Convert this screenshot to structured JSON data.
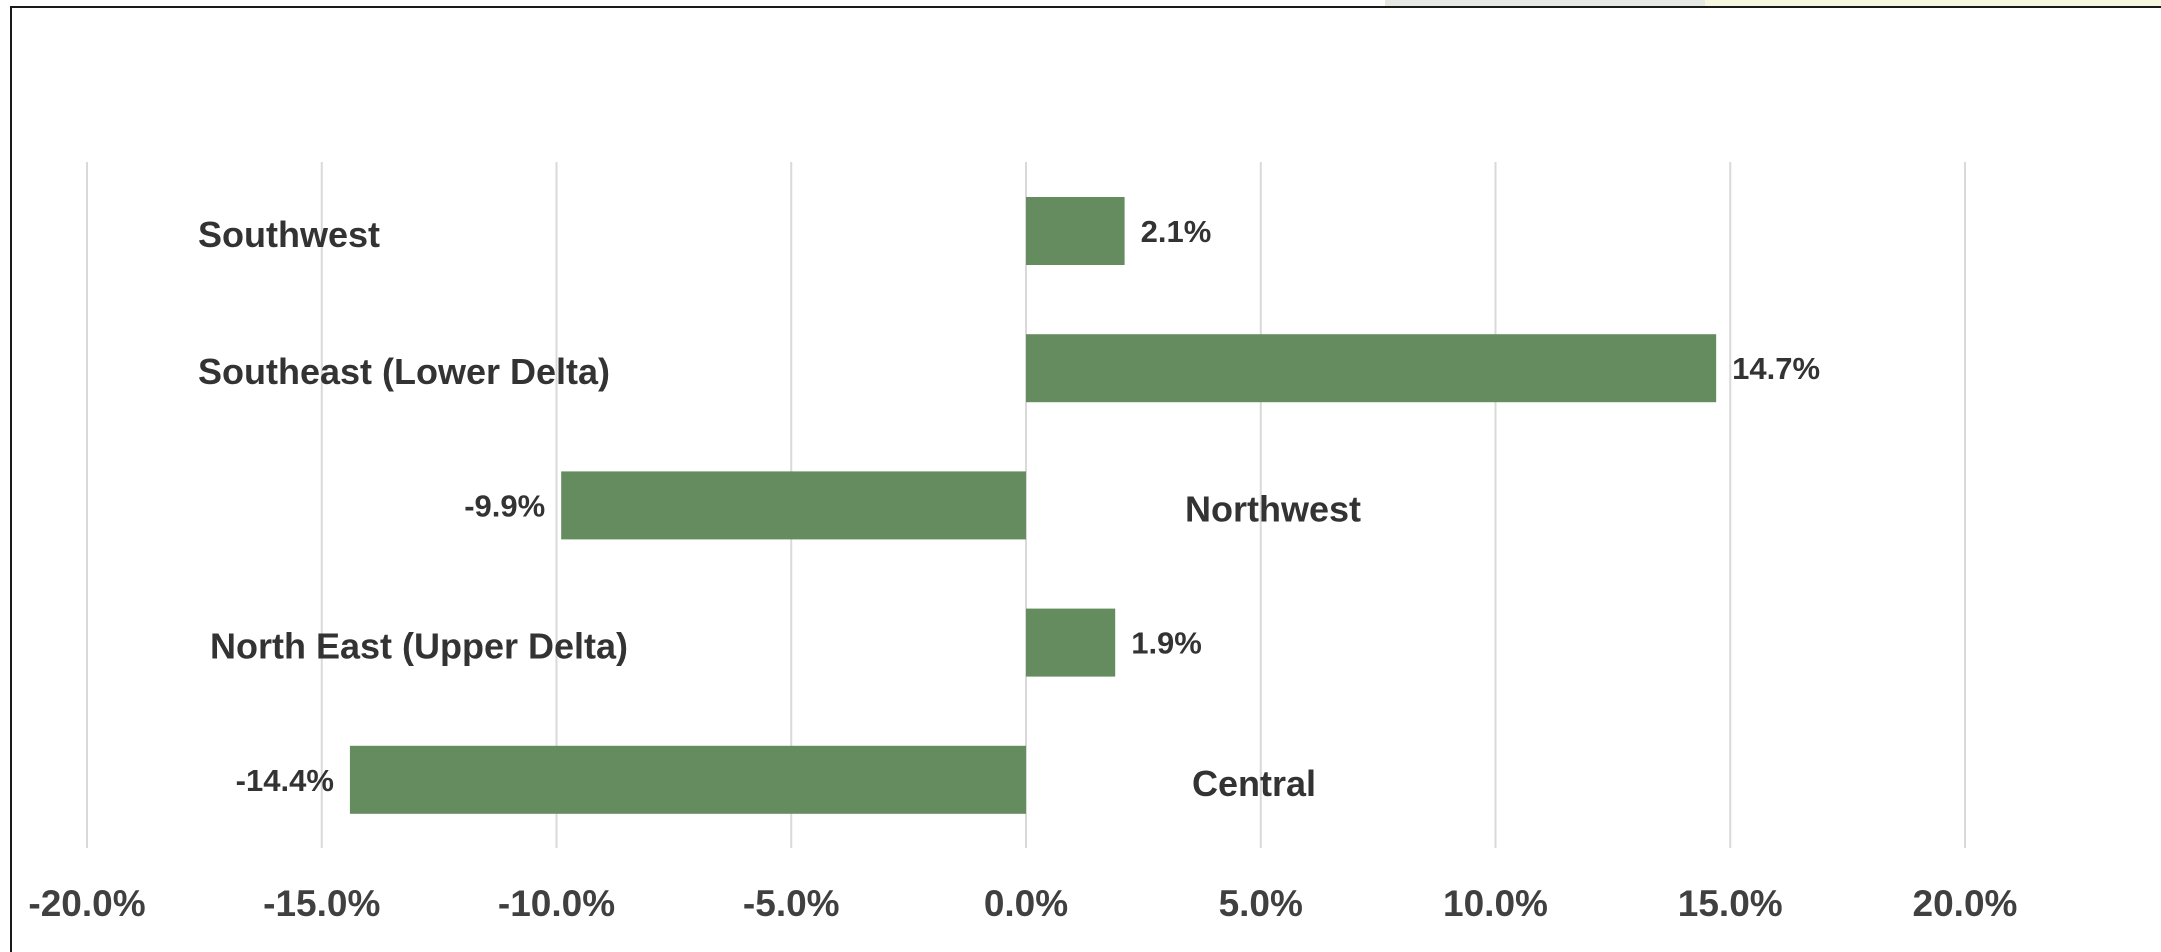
{
  "chart_data": {
    "type": "bar",
    "orientation": "horizontal",
    "categories": [
      "Southwest",
      "Southeast (Lower Delta)",
      "Northwest",
      "North East (Upper Delta)",
      "Central"
    ],
    "values": [
      2.1,
      14.7,
      -9.9,
      1.9,
      -14.4
    ],
    "data_labels": [
      "2.1%",
      "14.7%",
      "-9.9%",
      "1.9%",
      "-14.4%"
    ],
    "x_ticks": [
      -20,
      -15,
      -10,
      -5,
      0,
      5,
      10,
      15,
      20
    ],
    "x_tick_labels": [
      "-20.0%",
      "-15.0%",
      "-10.0%",
      "-5.0%",
      "0.0%",
      "5.0%",
      "10.0%",
      "15.0%",
      "20.0%"
    ],
    "xlim": [
      -20,
      20
    ],
    "grid": "vertical",
    "legend": "none",
    "bar_color": "#658c5e",
    "category_label_placement": "opposite side of zero from bar"
  }
}
